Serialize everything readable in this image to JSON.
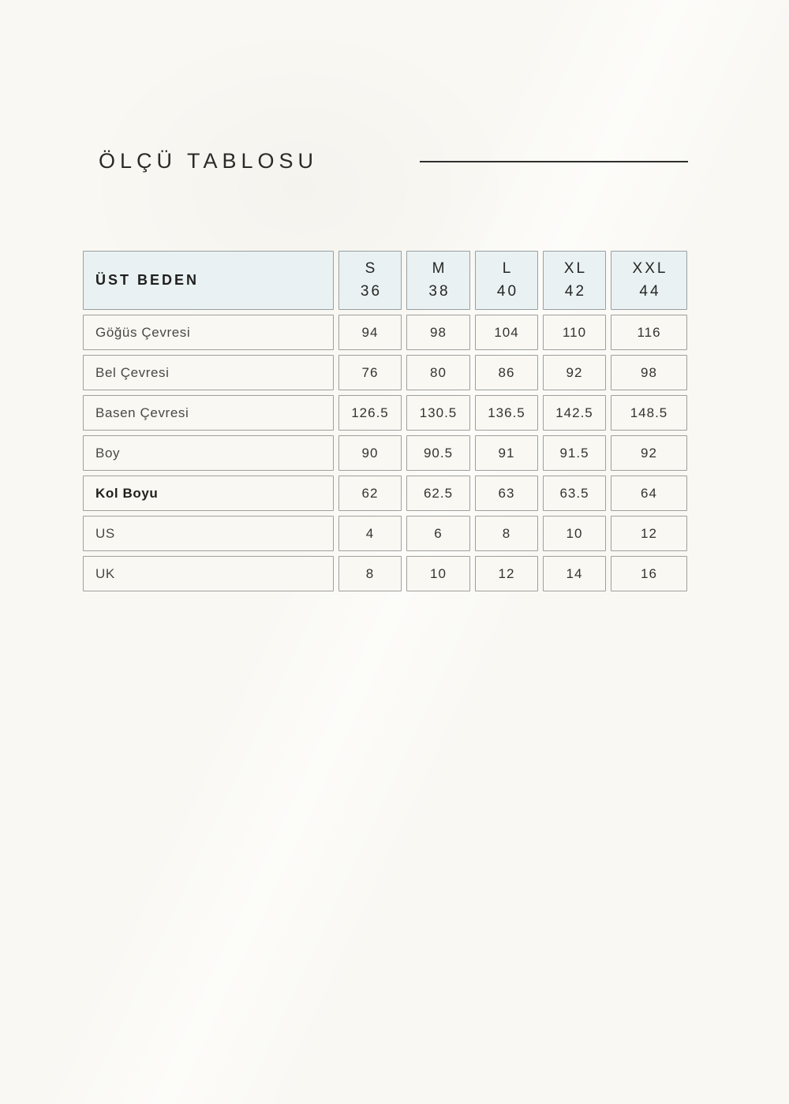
{
  "page": {
    "title": "ÖLÇÜ TABLOSU"
  },
  "table": {
    "header": {
      "label": "ÜST BEDEN",
      "columns": [
        {
          "size": "S",
          "number": "36"
        },
        {
          "size": "M",
          "number": "38"
        },
        {
          "size": "L",
          "number": "40"
        },
        {
          "size": "XL",
          "number": "42"
        },
        {
          "size": "XXL",
          "number": "44"
        }
      ]
    },
    "rows": [
      {
        "label": "Göğüs Çevresi",
        "values": [
          "94",
          "98",
          "104",
          "110",
          "116"
        ]
      },
      {
        "label": "Bel Çevresi",
        "values": [
          "76",
          "80",
          "86",
          "92",
          "98"
        ]
      },
      {
        "label": "Basen Çevresi",
        "values": [
          "126.5",
          "130.5",
          "136.5",
          "142.5",
          "148.5"
        ]
      },
      {
        "label": "Boy",
        "values": [
          "90",
          "90.5",
          "91",
          "91.5",
          "92"
        ]
      },
      {
        "label": "Kol Boyu",
        "values": [
          "62",
          "62.5",
          "63",
          "63.5",
          "64"
        ]
      },
      {
        "label": "US",
        "values": [
          "4",
          "6",
          "8",
          "10",
          "12"
        ]
      },
      {
        "label": "UK",
        "values": [
          "8",
          "10",
          "12",
          "14",
          "16"
        ]
      }
    ]
  },
  "colors": {
    "page_bg": "#f9f8f3",
    "header_cell_bg": "#e9f1f3",
    "data_cell_bg": "#f9f8f2",
    "cell_border": "#9f9f9d",
    "title_text": "#2b2a28",
    "label_text": "#484846",
    "value_text": "#333331"
  }
}
